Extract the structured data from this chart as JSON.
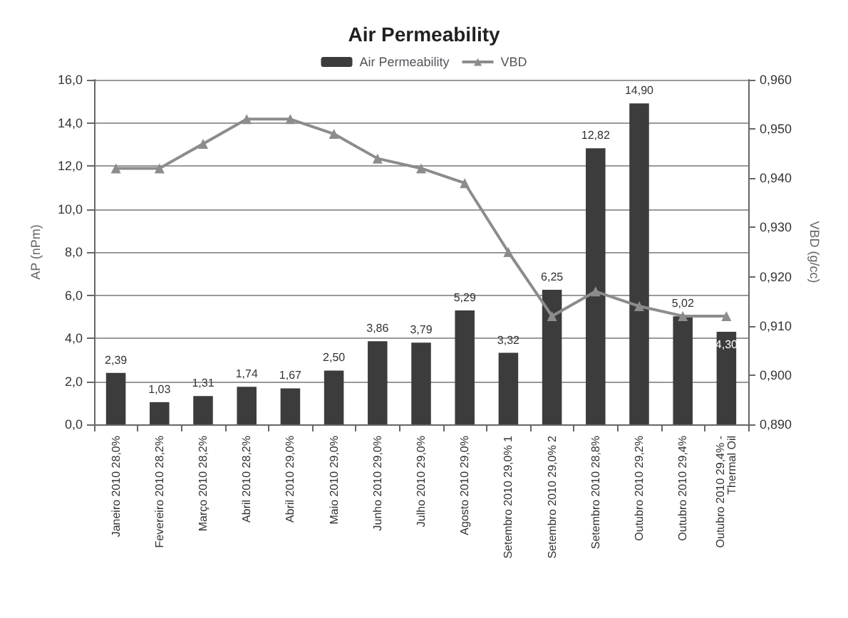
{
  "chart_data": {
    "type": "bar",
    "title": "Air Permeability",
    "categories": [
      "Janeiro 2010 28,0%",
      "Fevereiro 2010 28,2%",
      "Março 2010 28,2%",
      "Abril 2010 28,2%",
      "Abril 2010 29,0%",
      "Maio 2010 29,0%",
      "Junho 2010 29,0%",
      "Julho 2010 29,0%",
      "Agosto 2010 29,0%",
      "Setembro 2010 29,0% 1",
      "Setembro 2010 29,0% 2",
      "Setembro 2010 28,8%",
      "Outubro 2010 29,2%",
      "Outubro 2010 29,4%",
      "Outubro 2010 29,4% - Thermal Oil"
    ],
    "series": [
      {
        "name": "Air Permeability",
        "color": "#3c3c3c",
        "values": [
          2.39,
          1.03,
          1.31,
          1.74,
          1.67,
          2.5,
          3.86,
          3.79,
          5.29,
          3.32,
          6.25,
          12.82,
          14.9,
          5.02,
          4.3
        ],
        "value_labels": [
          "2,39",
          "1,03",
          "1,31",
          "1,74",
          "1,67",
          "2,50",
          "3,86",
          "3,79",
          "5,29",
          "3,32",
          "6,25",
          "12,82",
          "14,90",
          "5,02",
          "4,30"
        ]
      },
      {
        "name": "VBD",
        "type": "line",
        "axis": "y2",
        "color": "#8c8c8c",
        "marker": "triangle",
        "values": [
          0.942,
          0.942,
          0.947,
          0.952,
          0.952,
          0.949,
          0.944,
          0.942,
          0.939,
          0.925,
          0.912,
          0.917,
          0.914,
          0.912,
          0.912
        ]
      }
    ],
    "ylabel": "AP (nPm)",
    "y2label": "VBD (g/cc)",
    "ylim": [
      0,
      16
    ],
    "yticks": [
      {
        "value": 0,
        "label": "0,0"
      },
      {
        "value": 2,
        "label": "2,0"
      },
      {
        "value": 4,
        "label": "4,0"
      },
      {
        "value": 6,
        "label": "6,0"
      },
      {
        "value": 8,
        "label": "8,0"
      },
      {
        "value": 10,
        "label": "10,0"
      },
      {
        "value": 12,
        "label": "12,0"
      },
      {
        "value": 14,
        "label": "14,0"
      },
      {
        "value": 16,
        "label": "16,0"
      }
    ],
    "y2lim": [
      0.89,
      0.96
    ],
    "y2ticks": [
      {
        "value": 0.89,
        "label": "0,890"
      },
      {
        "value": 0.9,
        "label": "0,900"
      },
      {
        "value": 0.91,
        "label": "0,910"
      },
      {
        "value": 0.92,
        "label": "0,920"
      },
      {
        "value": 0.93,
        "label": "0,930"
      },
      {
        "value": 0.94,
        "label": "0,940"
      },
      {
        "value": 0.95,
        "label": "0,950"
      },
      {
        "value": 0.96,
        "label": "0,960"
      }
    ],
    "grid": "y",
    "legend": "top"
  }
}
